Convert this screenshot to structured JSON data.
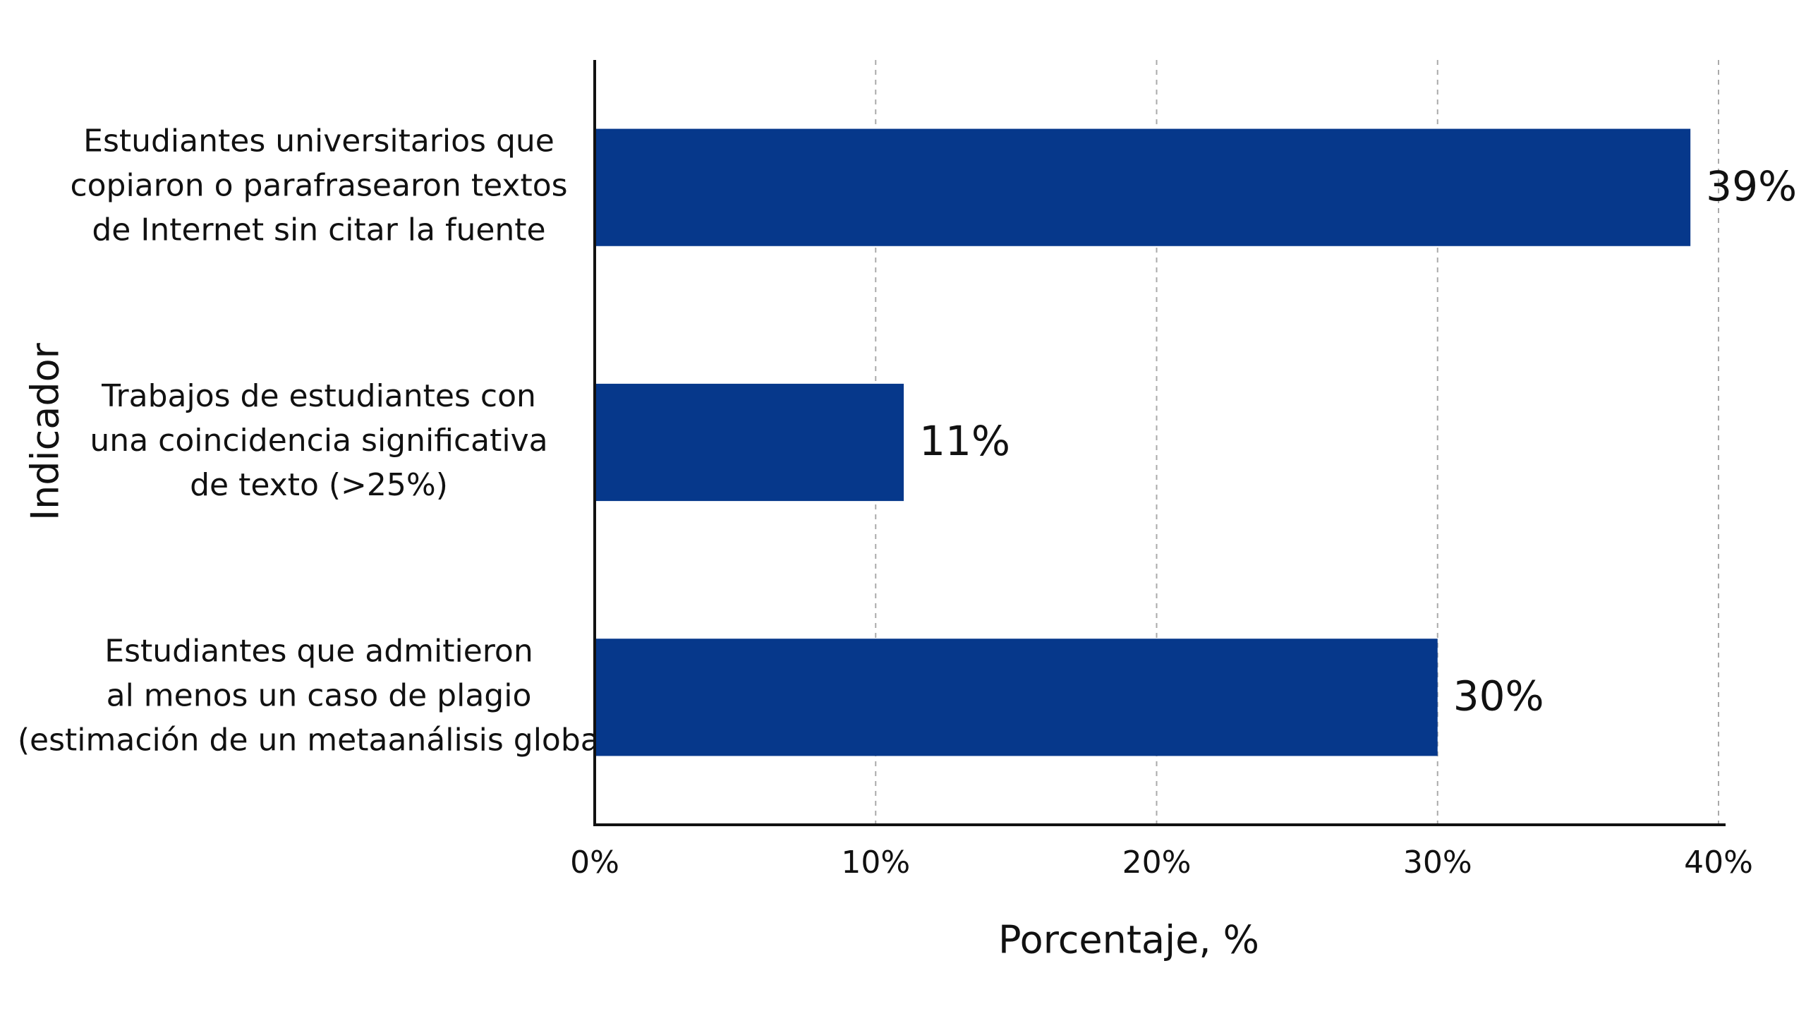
{
  "chart_data": {
    "type": "hbar",
    "y_label": "Indicador",
    "x_label": "Porcentaje, %",
    "categories": [
      [
        "Estudiantes universitarios que",
        "copiaron o parafrasearon textos",
        "de Internet sin citar la fuente"
      ],
      [
        "Trabajos de estudiantes con",
        "una coincidencia significativa",
        "de texto (>25%)"
      ],
      [
        "Estudiantes que admitieron",
        "al menos un caso de plagio",
        "(estimación de un metaanálisis global)"
      ]
    ],
    "values": [
      39,
      11,
      30
    ],
    "value_labels": [
      "39%",
      "11%",
      "30%"
    ],
    "color": "#06388b",
    "xlim": [
      0,
      40
    ],
    "xticks": [
      {
        "value": 0,
        "label": "0%"
      },
      {
        "value": 10,
        "label": "10%"
      },
      {
        "value": 20,
        "label": "20%"
      },
      {
        "value": 30,
        "label": "30%"
      },
      {
        "value": 40,
        "label": "40%"
      }
    ],
    "grid": true
  }
}
